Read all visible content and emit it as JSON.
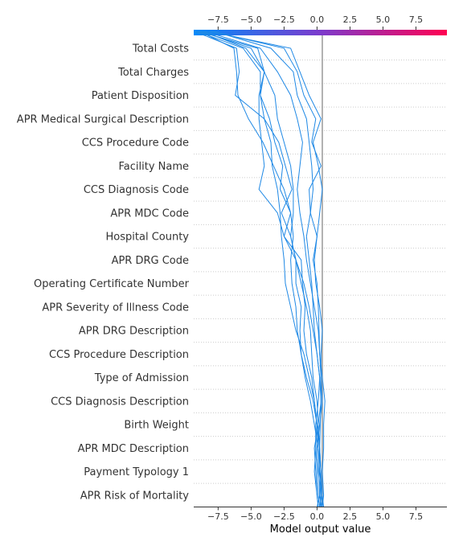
{
  "chart_data": {
    "type": "line",
    "title": "",
    "xlabel": "Model output value",
    "ylabel": "",
    "xlim": [
      -9.35,
      9.85
    ],
    "base_value": 0.4,
    "features": [
      "Total Costs",
      "Total Charges",
      "Patient Disposition",
      "APR Medical Surgical Description",
      "CCS Procedure Code",
      "Facility Name",
      "CCS Diagnosis Code",
      "APR MDC Code",
      "Hospital County",
      "APR DRG Code",
      "Operating Certificate Number",
      "APR Severity of Illness Code",
      "APR DRG Description",
      "CCS Procedure Description",
      "Type of Admission",
      "CCS Diagnosis Description",
      "Birth Weight",
      "APR MDC Description",
      "Payment Typology 1",
      "APR Risk of Mortality"
    ],
    "ticks": [
      -7.5,
      -5.0,
      -2.5,
      0.0,
      2.5,
      5.0,
      7.5
    ],
    "tick_labels": [
      "−7.5",
      "−5.0",
      "−2.5",
      "0.0",
      "2.5",
      "5.0",
      "7.5"
    ],
    "colorbar": {
      "low_color": "#008bfb",
      "high_color": "#ff0052"
    },
    "line_color": "#1e88e5",
    "base_line_color": "#999999",
    "series": [
      {
        "values": [
          0.3,
          0.2,
          0.15,
          0.2,
          0.25,
          0.3,
          0.3,
          0.2,
          0.15,
          0.1,
          0.0,
          -0.3,
          0.0,
          0.2,
          0.4,
          0.1,
          -0.3,
          0.3,
          -0.6,
          -1.3,
          -2.0,
          -8.2
        ]
      },
      {
        "values": [
          0.2,
          0.3,
          0.1,
          0.0,
          0.2,
          0.4,
          0.3,
          0.3,
          0.4,
          0.2,
          -0.1,
          -0.2,
          0.0,
          -0.5,
          -0.6,
          0.3,
          -0.4,
          -0.1,
          -1.0,
          -1.5,
          -2.5,
          -8.0
        ]
      },
      {
        "values": [
          0.1,
          0.0,
          -0.1,
          -0.2,
          0.1,
          0.3,
          0.2,
          0.0,
          -0.2,
          -0.3,
          -0.4,
          -0.6,
          -0.8,
          -0.5,
          -0.3,
          -0.4,
          -0.6,
          -0.8,
          -1.5,
          -1.8,
          -3.5,
          -7.8
        ]
      },
      {
        "values": [
          0.4,
          0.5,
          0.4,
          0.5,
          0.5,
          0.6,
          0.4,
          0.2,
          0.1,
          -0.2,
          -0.5,
          -0.8,
          -1.0,
          -1.3,
          -1.5,
          -1.3,
          -1.1,
          -1.5,
          -2.0,
          -3.0,
          -4.3,
          -8.5
        ]
      },
      {
        "values": [
          0.0,
          0.2,
          0.3,
          0.1,
          -0.2,
          -0.5,
          -0.9,
          -1.2,
          -1.3,
          -1.2,
          -1.6,
          -1.6,
          -2.0,
          -1.8,
          -1.8,
          -2.0,
          -2.5,
          -3.0,
          -3.2,
          -4.0,
          -5.0,
          -8.8
        ]
      },
      {
        "values": [
          0.2,
          0.1,
          0.0,
          -0.1,
          -0.1,
          0.1,
          0.2,
          0.0,
          -0.3,
          -0.6,
          -1.0,
          -1.6,
          -2.5,
          -3.0,
          -4.4,
          -4.0,
          -4.2,
          -4.4,
          -4.4,
          -4.0,
          -4.5,
          -9.0
        ]
      },
      {
        "values": [
          0.3,
          0.4,
          0.3,
          0.2,
          0.0,
          -0.2,
          -0.6,
          -1.0,
          -1.6,
          -2.0,
          -2.4,
          -2.5,
          -2.7,
          -2.8,
          -3.0,
          -3.4,
          -3.5,
          -4.0,
          -4.3,
          -4.0,
          -5.4,
          -8.6
        ]
      },
      {
        "values": [
          0.1,
          0.0,
          -0.2,
          -0.1,
          0.0,
          -0.2,
          -0.4,
          -0.8,
          -1.0,
          -0.9,
          -1.1,
          -1.2,
          -2.5,
          -2.0,
          -2.8,
          -2.6,
          -3.2,
          -3.6,
          -4.3,
          -4.3,
          -5.6,
          -9.1
        ]
      },
      {
        "values": [
          0.5,
          0.4,
          0.2,
          0.1,
          0.0,
          -0.3,
          -0.8,
          -1.2,
          -1.5,
          -1.6,
          -1.9,
          -2.0,
          -1.8,
          -2.0,
          -2.5,
          -3.3,
          -4.1,
          -5.2,
          -6.0,
          -6.1,
          -6.3,
          -8.9
        ]
      },
      {
        "values": [
          0.4,
          0.3,
          0.3,
          0.2,
          0.1,
          0.0,
          -0.3,
          -0.4,
          -0.5,
          -0.8,
          -1.2,
          -1.6,
          -2.0,
          -2.7,
          -1.9,
          -2.4,
          -2.9,
          -4.0,
          -6.2,
          -5.9,
          -6.1,
          -9.3
        ]
      }
    ]
  }
}
